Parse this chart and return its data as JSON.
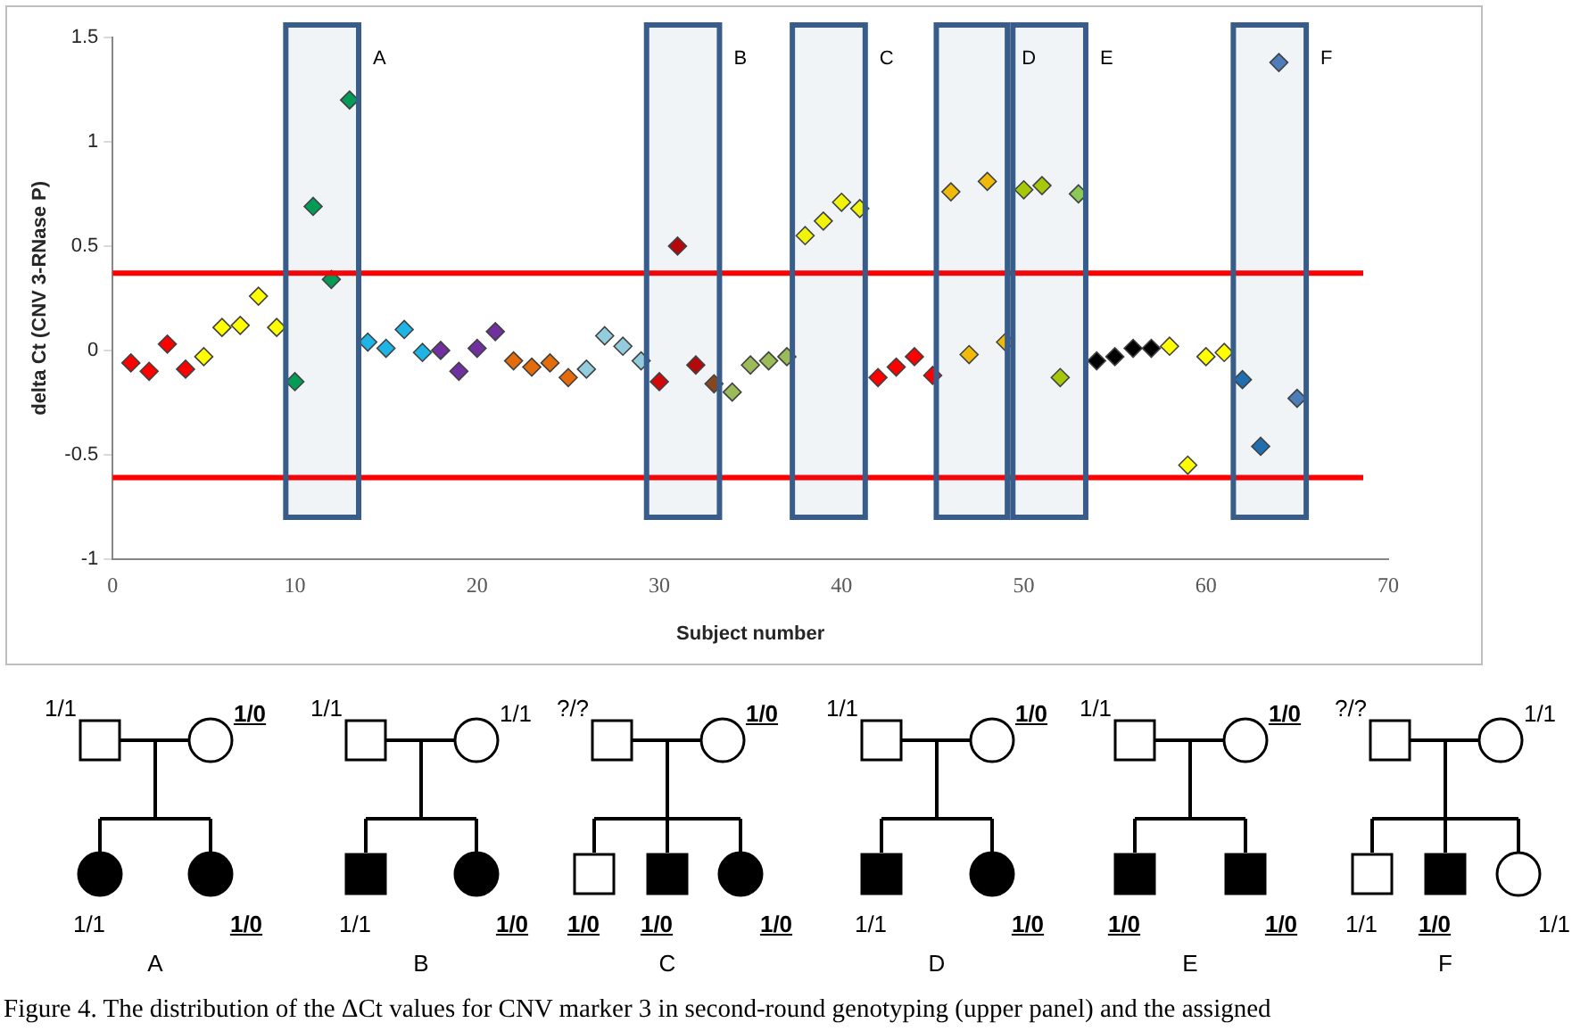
{
  "chart_data": [
    {
      "type": "scatter",
      "xlabel": "Subject number",
      "ylabel": "delta Ct (CNV 3-RNase P)",
      "marker": "diamond",
      "xlim": [
        0,
        70
      ],
      "xticks": [
        0,
        10,
        20,
        30,
        40,
        50,
        60,
        70
      ],
      "ylim": [
        -1,
        1.5
      ],
      "yticks": [
        -1,
        -0.5,
        0,
        0.5,
        1,
        1.5
      ],
      "x": [
        1,
        2,
        3,
        4,
        5,
        6,
        7,
        8,
        9,
        10,
        11,
        12,
        13,
        14,
        15,
        16,
        17,
        18,
        19,
        20,
        21,
        22,
        23,
        24,
        25,
        26,
        27,
        28,
        29,
        30,
        31,
        32,
        33,
        34,
        35,
        36,
        37,
        38,
        39,
        40,
        41,
        42,
        43,
        44,
        45,
        46,
        47,
        48,
        49,
        50,
        51,
        52,
        53,
        54,
        55,
        56,
        57,
        58,
        59,
        60,
        61,
        62,
        63,
        64,
        65
      ],
      "values": [
        -0.06,
        -0.1,
        0.03,
        -0.09,
        -0.03,
        0.11,
        0.12,
        0.26,
        0.11,
        -0.15,
        0.69,
        0.34,
        1.2,
        0.04,
        0.01,
        0.1,
        -0.01,
        0.0,
        -0.1,
        0.01,
        0.09,
        -0.05,
        -0.08,
        -0.06,
        -0.13,
        -0.09,
        0.07,
        0.02,
        -0.05,
        -0.15,
        0.5,
        -0.07,
        -0.16,
        -0.2,
        -0.07,
        -0.05,
        -0.03,
        0.55,
        0.62,
        0.71,
        0.68,
        -0.13,
        -0.08,
        -0.03,
        -0.12,
        0.76,
        -0.02,
        0.81,
        0.04,
        0.77,
        0.79,
        -0.13,
        0.75,
        -0.05,
        -0.03,
        0.01,
        0.01,
        0.02,
        -0.55,
        -0.03,
        -0.01,
        -0.14,
        -0.46,
        1.38,
        -0.23
      ],
      "colors": [
        "#ff0000",
        "#ff0000",
        "#ff0000",
        "#ff0000",
        "#ffff00",
        "#ffff00",
        "#ffff00",
        "#ffff00",
        "#ffff00",
        "#00a050",
        "#00a050",
        "#00a050",
        "#00a050",
        "#1fb4e6",
        "#1fb4e6",
        "#1fb4e6",
        "#1fb4e6",
        "#7030a0",
        "#7030a0",
        "#7030a0",
        "#7030a0",
        "#e46c0a",
        "#e46c0a",
        "#e46c0a",
        "#e46c0a",
        "#93cddd",
        "#93cddd",
        "#93cddd",
        "#93cddd",
        "#e00000",
        "#c00000",
        "#c00000",
        "#8b4513",
        "#9bbb59",
        "#9bbb59",
        "#9bbb59",
        "#9bbb59",
        "#ffff00",
        "#ffff00",
        "#ffff00",
        "#ffff00",
        "#ff0000",
        "#ff0000",
        "#ff0000",
        "#ff0000",
        "#ffc000",
        "#ffc000",
        "#ffc000",
        "#ffc000",
        "#b0d000",
        "#b0d000",
        "#b0d000",
        "#92d050",
        "#000000",
        "#000000",
        "#000000",
        "#000000",
        "#ffff00",
        "#ffff00",
        "#ffff00",
        "#ffff00",
        "#1f6fb0",
        "#1f6fb0",
        "#4f81bd",
        "#4f81bd"
      ],
      "ref_lines": [
        {
          "axis": "y",
          "value": 0.37,
          "color": "#ff0000"
        },
        {
          "axis": "y",
          "value": -0.61,
          "color": "#ff0000"
        }
      ],
      "bands": [
        {
          "axis": "x",
          "from": 9.5,
          "to": 13.5,
          "label": "A",
          "color": "#385d8a"
        },
        {
          "axis": "x",
          "from": 29.3,
          "to": 33.3,
          "label": "B",
          "color": "#385d8a"
        },
        {
          "axis": "x",
          "from": 37.3,
          "to": 41.3,
          "label": "C",
          "color": "#385d8a"
        },
        {
          "axis": "x",
          "from": 45.2,
          "to": 49.1,
          "label": "D",
          "color": "#385d8a"
        },
        {
          "axis": "x",
          "from": 49.4,
          "to": 53.4,
          "label": "E",
          "color": "#385d8a"
        },
        {
          "axis": "x",
          "from": 61.5,
          "to": 65.5,
          "label": "F",
          "color": "#385d8a"
        }
      ]
    },
    {
      "type": "other",
      "annotations": [
        "1/1",
        "1/0",
        "1/1",
        "1/0",
        "A",
        "1/1",
        "1/1",
        "1/1",
        "1/0",
        "B",
        "?/?",
        "1/0",
        "1/0",
        "1/0",
        "1/0",
        "C",
        "1/1",
        "1/0",
        "1/1",
        "1/0",
        "D",
        "1/1",
        "1/0",
        "1/0",
        "1/0",
        "E",
        "?/?",
        "1/1",
        "1/1",
        "1/0",
        "1/1",
        "F",
        "Figure 4. The distribution of the ΔCt values for CNV marker 3 in second-round genotyping (upper panel) and the assigned"
      ]
    }
  ]
}
